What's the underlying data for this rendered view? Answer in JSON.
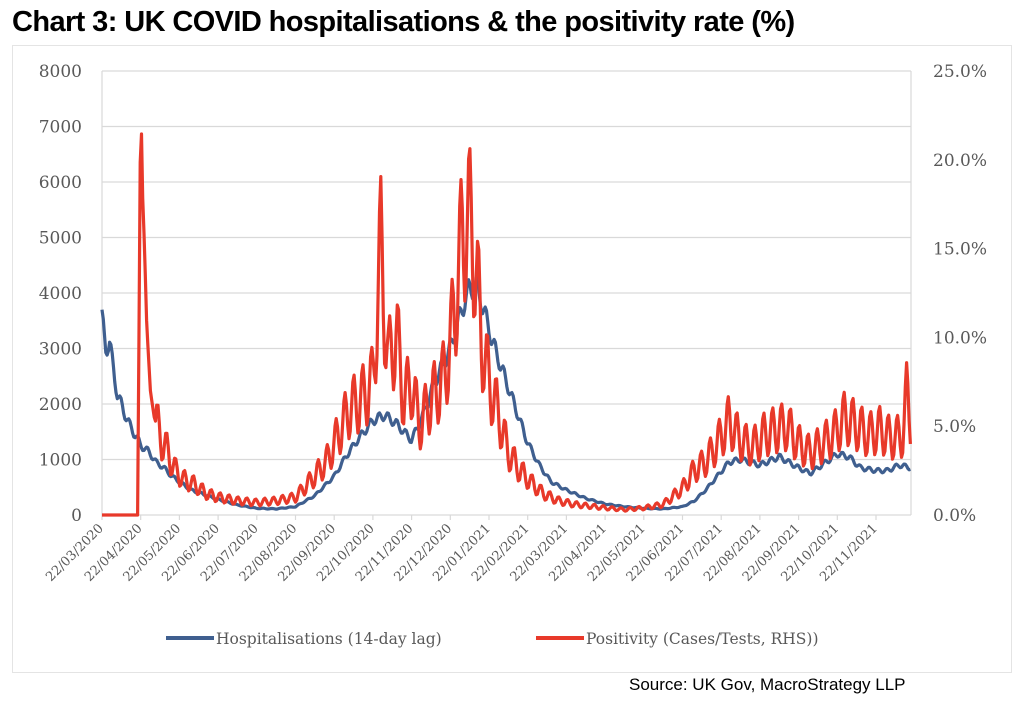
{
  "title": "Chart 3: UK COVID hospitalisations & the positivity rate (%)",
  "source": "Source: UK Gov, MacroStrategy LLP",
  "chart_data": {
    "type": "line",
    "title": "Chart 3: UK COVID hospitalisations & the positivity rate (%)",
    "xlabel": "",
    "ylabel": "",
    "y2label": "",
    "ylim": [
      0,
      8000
    ],
    "y2lim": [
      0,
      25
    ],
    "yticks": [
      "0",
      "1000",
      "2000",
      "3000",
      "4000",
      "5000",
      "6000",
      "7000",
      "8000"
    ],
    "y2ticks": [
      "0.0%",
      "5.0%",
      "10.0%",
      "15.0%",
      "20.0%",
      "25.0%"
    ],
    "xticks": [
      "22/03/2020",
      "22/04/2020",
      "22/05/2020",
      "22/06/2020",
      "22/07/2020",
      "22/08/2020",
      "22/09/2020",
      "22/10/2020",
      "22/11/2020",
      "22/12/2020",
      "22/01/2021",
      "22/02/2021",
      "22/03/2021",
      "22/04/2021",
      "22/05/2021",
      "22/06/2021",
      "22/07/2021",
      "22/08/2021",
      "22/09/2021",
      "22/10/2021",
      "22/11/2021"
    ],
    "grid": true,
    "legend_position": "bottom",
    "x_unit": "months since 22/03/2020",
    "series": [
      {
        "name": "Hospitalisations (14-day lag)",
        "axis": "left",
        "color": "#3f5f8f",
        "x": [
          0,
          0.1,
          0.2,
          0.3,
          0.4,
          0.5,
          0.6,
          0.7,
          0.8,
          0.9,
          1.0,
          1.2,
          1.4,
          1.6,
          1.8,
          2.0,
          2.3,
          2.6,
          3.0,
          3.5,
          4.0,
          4.5,
          5.0,
          5.5,
          6.0,
          6.3,
          6.6,
          7.0,
          7.3,
          7.6,
          8.0,
          8.3,
          8.6,
          9.0,
          9.3,
          9.5,
          9.7,
          9.9,
          10.1,
          10.3,
          10.5,
          10.8,
          11.0,
          11.3,
          11.6,
          12.0,
          12.5,
          13.0,
          13.5,
          14.0,
          14.5,
          15.0,
          15.3,
          15.6,
          15.9,
          16.2,
          16.5,
          17.0,
          17.5,
          18.0,
          18.3,
          18.6,
          19.0,
          19.3,
          19.6,
          20.0,
          20.3,
          20.6,
          20.9
        ],
        "values": [
          3550,
          3000,
          3100,
          2600,
          2150,
          2000,
          1800,
          1650,
          1500,
          1400,
          1250,
          1150,
          950,
          850,
          700,
          600,
          450,
          380,
          280,
          180,
          120,
          110,
          150,
          350,
          700,
          1050,
          1350,
          1700,
          1800,
          1650,
          1350,
          1800,
          2400,
          3000,
          3700,
          4100,
          4100,
          3600,
          3100,
          2700,
          2300,
          1700,
          1300,
          900,
          600,
          450,
          300,
          200,
          150,
          120,
          110,
          150,
          250,
          450,
          700,
          950,
          1000,
          900,
          1050,
          850,
          750,
          900,
          1100,
          1050,
          850,
          800,
          800,
          900,
          850
        ]
      },
      {
        "name": "Positivity (Cases/Tests, RHS))",
        "axis": "right",
        "color": "#e8392a",
        "x": [
          0,
          0.9,
          0.93,
          0.96,
          1.0,
          1.05,
          1.1,
          1.15,
          1.25,
          1.35,
          1.5,
          1.7,
          1.9,
          2.1,
          2.4,
          2.7,
          3.0,
          3.5,
          4.0,
          4.5,
          5.0,
          5.5,
          5.8,
          6.1,
          6.4,
          6.7,
          7.0,
          7.2,
          7.4,
          7.6,
          7.8,
          8.0,
          8.2,
          8.5,
          8.8,
          9.0,
          9.2,
          9.4,
          9.6,
          9.8,
          10.0,
          10.2,
          10.5,
          10.8,
          11.1,
          11.4,
          11.8,
          12.2,
          12.6,
          13.0,
          13.5,
          14.0,
          14.5,
          15.0,
          15.3,
          15.6,
          15.9,
          16.2,
          16.5,
          16.8,
          17.1,
          17.4,
          17.7,
          18.0,
          18.3,
          18.6,
          18.9,
          19.2,
          19.5,
          19.8,
          20.1,
          20.4,
          20.7,
          20.8,
          20.9
        ],
        "values": [
          0,
          0,
          0,
          12,
          23.7,
          18,
          15,
          11,
          7,
          5.5,
          4.5,
          3.5,
          2.5,
          2.0,
          1.7,
          1.2,
          1.0,
          0.8,
          0.7,
          0.8,
          1.0,
          2.2,
          3.0,
          4.5,
          6.0,
          6.5,
          7.5,
          15.1,
          8.5,
          10.3,
          6.5,
          7.5,
          5.0,
          6.5,
          7.5,
          9.5,
          13.5,
          17.0,
          15.5,
          10.0,
          7.5,
          6.0,
          3.5,
          2.5,
          1.8,
          1.2,
          0.8,
          0.6,
          0.5,
          0.4,
          0.3,
          0.4,
          0.6,
          1.5,
          2.5,
          3.0,
          4.0,
          5.3,
          4.2,
          3.8,
          4.5,
          4.8,
          5.0,
          4.0,
          3.5,
          4.0,
          4.5,
          5.5,
          5.0,
          4.5,
          4.8,
          4.3,
          4.5,
          7.0,
          5.3
        ]
      }
    ]
  }
}
